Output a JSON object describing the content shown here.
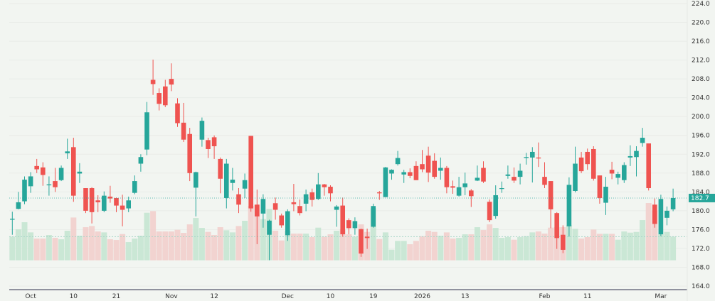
{
  "chart_data": {
    "type": "candlestick",
    "title": "",
    "xlabel": "",
    "ylabel": "",
    "ylim": [
      164,
      224
    ],
    "y_ticks": [
      "224.0",
      "220.0",
      "216.0",
      "212.0",
      "208.0",
      "204.0",
      "200.0",
      "196.0",
      "192.0",
      "188.0",
      "184.0",
      "180.0",
      "176.0",
      "172.0",
      "168.0",
      "164.0"
    ],
    "x_ticks": [
      {
        "label": "Oct",
        "index": 3
      },
      {
        "label": "10",
        "index": 10
      },
      {
        "label": "21",
        "index": 17
      },
      {
        "label": "Nov",
        "index": 26
      },
      {
        "label": "12",
        "index": 33
      },
      {
        "label": "Dec",
        "index": 45
      },
      {
        "label": "10",
        "index": 52
      },
      {
        "label": "19",
        "index": 59
      },
      {
        "label": "2026",
        "index": 67
      },
      {
        "label": "13",
        "index": 74
      },
      {
        "label": "Feb",
        "index": 87
      },
      {
        "label": "11",
        "index": 94
      },
      {
        "label": "Mar",
        "index": 106
      }
    ],
    "last_price": 182.7,
    "last_price_label": "182.7",
    "grid": true,
    "colors": {
      "up": "#26a69a",
      "down": "#ef5350",
      "up_volume": "#c5e5d2",
      "down_volume": "#f2cfcc",
      "background": "#f2f5f1"
    },
    "columns": [
      "open",
      "high",
      "low",
      "close",
      "volume"
    ],
    "candles": [
      [
        178.1,
        179.8,
        174.9,
        178.3,
        100
      ],
      [
        180.4,
        184.0,
        180.3,
        181.8,
        131
      ],
      [
        182.0,
        187.3,
        181.4,
        186.6,
        161
      ],
      [
        185.2,
        188.2,
        183.8,
        187.3,
        118
      ],
      [
        189.5,
        191.0,
        188.0,
        188.8,
        92
      ],
      [
        189.2,
        190.3,
        185.3,
        187.6,
        92
      ],
      [
        185.4,
        187.3,
        183.2,
        185.6,
        107
      ],
      [
        186.3,
        189.1,
        184.0,
        185.0,
        95
      ],
      [
        186.5,
        189.6,
        186.3,
        189.1,
        89
      ],
      [
        192.2,
        195.3,
        191.0,
        192.6,
        125
      ],
      [
        193.5,
        195.5,
        181.9,
        183.2,
        181
      ],
      [
        187.9,
        190.1,
        185.9,
        188.3,
        104
      ],
      [
        184.8,
        184.8,
        179.5,
        180.0,
        140
      ],
      [
        184.8,
        185.0,
        177.3,
        179.7,
        145
      ],
      [
        182.2,
        183.3,
        179.7,
        181.8,
        122
      ],
      [
        180.0,
        184.1,
        179.7,
        183.2,
        118
      ],
      [
        183.0,
        185.3,
        181.7,
        182.6,
        89
      ],
      [
        182.7,
        182.8,
        179.7,
        181.1,
        86
      ],
      [
        181.1,
        183.4,
        176.7,
        180.2,
        111
      ],
      [
        180.5,
        183.0,
        179.7,
        182.2,
        77
      ],
      [
        183.8,
        187.5,
        183.5,
        186.3,
        92
      ],
      [
        190.0,
        192.0,
        188.3,
        191.4,
        104
      ],
      [
        193.0,
        203.1,
        191.8,
        200.9,
        201
      ],
      [
        207.8,
        212.1,
        204.6,
        206.9,
        208
      ],
      [
        205.0,
        206.0,
        201.3,
        202.7,
        122
      ],
      [
        206.4,
        207.8,
        202.0,
        202.4,
        122
      ],
      [
        208.0,
        211.3,
        205.4,
        206.8,
        122
      ],
      [
        202.8,
        203.9,
        197.8,
        198.6,
        129
      ],
      [
        198.7,
        202.9,
        194.6,
        195.1,
        116
      ],
      [
        196.3,
        197.6,
        186.3,
        188.0,
        152
      ],
      [
        184.9,
        188.3,
        178.8,
        188.2,
        179
      ],
      [
        195.1,
        199.8,
        193.6,
        199.1,
        137
      ],
      [
        195.0,
        195.5,
        191.2,
        193.1,
        120
      ],
      [
        195.6,
        196.0,
        191.0,
        193.7,
        107
      ],
      [
        191.0,
        191.3,
        183.7,
        186.8,
        140
      ],
      [
        182.7,
        191.0,
        180.5,
        190.0,
        127
      ],
      [
        185.9,
        189.1,
        184.3,
        186.6,
        118
      ],
      [
        183.5,
        184.8,
        179.5,
        181.3,
        145
      ],
      [
        184.7,
        187.9,
        182.7,
        186.5,
        167
      ],
      [
        195.9,
        195.9,
        179.8,
        180.5,
        230
      ],
      [
        181.3,
        184.5,
        172.9,
        178.8,
        235
      ],
      [
        179.4,
        183.5,
        176.4,
        182.5,
        174
      ],
      [
        174.9,
        178.1,
        169.5,
        177.9,
        217
      ],
      [
        181.6,
        182.8,
        178.1,
        180.2,
        125
      ],
      [
        179.0,
        179.4,
        176.4,
        176.9,
        84
      ],
      [
        174.8,
        180.3,
        173.6,
        179.9,
        125
      ],
      [
        181.8,
        185.7,
        179.9,
        181.4,
        113
      ],
      [
        181.0,
        182.4,
        179.0,
        179.5,
        113
      ],
      [
        181.5,
        184.5,
        179.9,
        183.5,
        113
      ],
      [
        183.9,
        184.7,
        180.9,
        182.3,
        98
      ],
      [
        182.5,
        188.0,
        182.3,
        185.6,
        138
      ],
      [
        185.6,
        185.7,
        183.2,
        185.0,
        100
      ],
      [
        185.1,
        185.4,
        182.0,
        183.7,
        110
      ],
      [
        180.2,
        181.2,
        176.6,
        180.9,
        125
      ],
      [
        181.1,
        182.8,
        174.5,
        175.0,
        130
      ],
      [
        178.0,
        178.4,
        175.0,
        176.3,
        110
      ],
      [
        176.3,
        178.6,
        174.9,
        177.8,
        100
      ],
      [
        176.1,
        176.2,
        170.2,
        170.9,
        152
      ],
      [
        174.5,
        176.2,
        171.9,
        174.2,
        120
      ],
      [
        176.6,
        181.5,
        176.4,
        181.0,
        220
      ],
      [
        183.9,
        184.2,
        182.3,
        183.7,
        90
      ],
      [
        182.9,
        189.3,
        182.9,
        189.2,
        118
      ],
      [
        187.9,
        188.8,
        186.6,
        188.7,
        45
      ],
      [
        189.9,
        192.7,
        189.6,
        191.2,
        82
      ],
      [
        187.7,
        188.7,
        185.9,
        188.2,
        82
      ],
      [
        188.2,
        189.0,
        186.9,
        187.4,
        68
      ],
      [
        189.5,
        190.5,
        186.5,
        186.5,
        82
      ],
      [
        189.9,
        192.9,
        188.2,
        188.8,
        102
      ],
      [
        191.7,
        193.6,
        186.1,
        188.1,
        125
      ],
      [
        190.6,
        192.2,
        186.8,
        187.2,
        120
      ],
      [
        188.5,
        191.3,
        186.6,
        189.1,
        104
      ],
      [
        189.1,
        189.5,
        183.7,
        185.0,
        118
      ],
      [
        185.2,
        186.4,
        183.6,
        184.9,
        92
      ],
      [
        183.2,
        187.2,
        183.0,
        185.0,
        95
      ],
      [
        185.0,
        188.1,
        183.3,
        185.8,
        110
      ],
      [
        184.3,
        184.6,
        180.8,
        183.1,
        110
      ],
      [
        186.4,
        189.6,
        186.3,
        187.0,
        140
      ],
      [
        189.1,
        190.5,
        185.9,
        186.2,
        128
      ],
      [
        181.9,
        182.4,
        177.6,
        178.0,
        152
      ],
      [
        178.9,
        185.4,
        178.3,
        183.3,
        137
      ],
      [
        184.7,
        186.2,
        183.8,
        184.8,
        95
      ],
      [
        187.4,
        189.6,
        186.8,
        187.7,
        98
      ],
      [
        187.2,
        189.2,
        185.9,
        186.4,
        87
      ],
      [
        187.2,
        190.0,
        185.6,
        188.5,
        98
      ],
      [
        191.2,
        192.3,
        189.8,
        191.4,
        102
      ],
      [
        191.3,
        193.5,
        186.0,
        192.5,
        118
      ],
      [
        191.3,
        194.5,
        189.3,
        191.1,
        122
      ],
      [
        187.2,
        190.3,
        184.8,
        185.5,
        113
      ],
      [
        186.3,
        186.3,
        176.3,
        180.3,
        138
      ],
      [
        179.5,
        179.7,
        171.9,
        174.2,
        140
      ],
      [
        174.9,
        176.9,
        171.0,
        171.7,
        140
      ],
      [
        176.7,
        187.1,
        174.5,
        185.5,
        148
      ],
      [
        184.2,
        193.6,
        183.9,
        190.0,
        133
      ],
      [
        191.3,
        192.5,
        188.0,
        188.4,
        92
      ],
      [
        192.5,
        193.2,
        188.7,
        189.9,
        98
      ],
      [
        193.1,
        193.7,
        186.4,
        186.8,
        130
      ],
      [
        187.5,
        187.5,
        181.5,
        182.7,
        112
      ],
      [
        181.7,
        187.2,
        179.1,
        185.1,
        112
      ],
      [
        188.7,
        190.4,
        186.7,
        187.9,
        112
      ],
      [
        187.0,
        188.3,
        185.6,
        187.8,
        87
      ],
      [
        186.5,
        190.3,
        185.9,
        189.7,
        122
      ],
      [
        191.3,
        193.9,
        189.5,
        191.6,
        117
      ],
      [
        191.4,
        193.7,
        187.3,
        192.7,
        120
      ],
      [
        194.4,
        197.6,
        193.6,
        195.5,
        170
      ],
      [
        194.3,
        194.3,
        184.3,
        184.8,
        242
      ],
      [
        181.3,
        182.6,
        176.4,
        177.2,
        210
      ],
      [
        175.0,
        183.4,
        174.6,
        182.5,
        110
      ],
      [
        178.5,
        180.9,
        176.9,
        180.0,
        120
      ],
      [
        180.3,
        184.7,
        179.9,
        182.7,
        100
      ]
    ]
  }
}
